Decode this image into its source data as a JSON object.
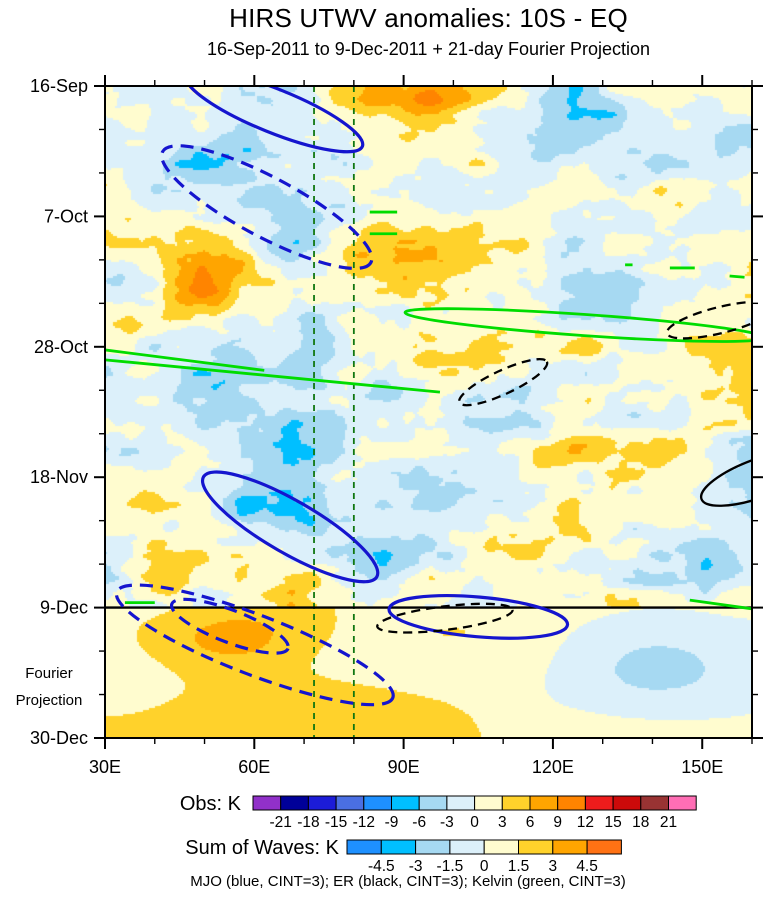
{
  "title": "HIRS UTWV anomalies: 10S - EQ",
  "subtitle": "16-Sep-2011 to 9-Dec-2011 + 21-day Fourier Projection",
  "footnote": "MJO (blue, CINT=3); ER (black, CINT=3); Kelvin (green, CINT=3)",
  "fourier_label": [
    "Fourier",
    "Projection"
  ],
  "chart_data": {
    "type": "heatmap",
    "description": "Hovmoller diagram (time vs longitude) of HIRS upper-tropospheric water vapor anomalies averaged 10S-EQ, observations through 9-Dec then 21-day Fourier projection, with MJO/ER/Kelvin wave contour envelopes overlaid",
    "x_axis": {
      "ticks": [
        "30E",
        "60E",
        "90E",
        "120E",
        "150E"
      ],
      "tick_lons": [
        30,
        60,
        90,
        120,
        150
      ],
      "minor_lons": [
        40,
        50,
        70,
        80,
        100,
        110,
        130,
        140,
        160
      ],
      "range": [
        30,
        160
      ]
    },
    "y_axis": {
      "ticks": [
        "16-Sep",
        "7-Oct",
        "28-Oct",
        "18-Nov",
        "9-Dec",
        "30-Dec"
      ],
      "tick_days": [
        0,
        21,
        42,
        63,
        84,
        105
      ],
      "minor_days": [
        7,
        14,
        28,
        35,
        49,
        56,
        70,
        77,
        91,
        98
      ],
      "range": [
        0,
        105
      ]
    },
    "projection_start_day": 84,
    "obs_colorbar": {
      "label": "Obs: K",
      "levels": [
        -21,
        -18,
        -15,
        -12,
        -9,
        -6,
        -3,
        0,
        3,
        6,
        9,
        12,
        15,
        18,
        21
      ],
      "colors": [
        "#9130C9",
        "#000099",
        "#1C1CD8",
        "#4A6FE3",
        "#1E90FF",
        "#00BFFF",
        "#A6D9F2",
        "#DCF0FA",
        "#FFFCCF",
        "#FFD22B",
        "#FFA500",
        "#FF8400",
        "#EE1C1C",
        "#CC0A0A",
        "#993333",
        "#FF6EB5"
      ]
    },
    "waves_colorbar": {
      "label": "Sum of Waves: K",
      "levels": [
        -4.5,
        -3,
        -1.5,
        0,
        1.5,
        3,
        4.5
      ],
      "colors": [
        "#1E90FF",
        "#00BFFF",
        "#A6D9F2",
        "#DCF0FA",
        "#FFFCCF",
        "#FFD22B",
        "#FFA500",
        "#FF7214"
      ]
    },
    "wave_legend": [
      {
        "name": "MJO",
        "color": "blue",
        "cint": 3
      },
      {
        "name": "ER",
        "color": "black",
        "cint": 3
      },
      {
        "name": "Kelvin",
        "color": "green",
        "cint": 3
      }
    ],
    "field": {
      "scale": 4.4,
      "octaves": [
        [
          95,
          52,
          1.0
        ],
        [
          47,
          26,
          0.6
        ],
        [
          23,
          13,
          0.35
        ],
        [
          12,
          7,
          0.2
        ]
      ],
      "bumps": [
        {
          "lon": 95,
          "day": 1.5,
          "sx": 20,
          "sy": 3,
          "a": 6
        },
        {
          "lon": 117,
          "day": 5,
          "sx": 10,
          "sy": 4,
          "a": -5
        },
        {
          "lon": 90,
          "day": 11,
          "sx": 12,
          "sy": 4,
          "a": 4.5
        },
        {
          "lon": 45,
          "day": 12,
          "sx": 9,
          "sy": 6,
          "a": -4
        },
        {
          "lon": 52,
          "day": 30,
          "sx": 8,
          "sy": 5,
          "a": 5.5
        },
        {
          "lon": 88,
          "day": 27,
          "sx": 11,
          "sy": 5,
          "a": 5.5
        },
        {
          "lon": 72,
          "day": 42,
          "sx": 5,
          "sy": 9,
          "a": -5
        },
        {
          "lon": 60,
          "day": 55,
          "sx": 11,
          "sy": 8,
          "a": -5.5
        },
        {
          "lon": 152,
          "day": 44,
          "sx": 9,
          "sy": 6,
          "a": 4.5
        },
        {
          "lon": 100,
          "day": 64,
          "sx": 10,
          "sy": 5,
          "a": -4.5
        },
        {
          "lon": 67,
          "day": 71,
          "sx": 13,
          "sy": 5,
          "a": -4.5
        },
        {
          "lon": 122,
          "day": 72,
          "sx": 10,
          "sy": 5,
          "a": 5
        },
        {
          "lon": 40,
          "day": 78,
          "sx": 8,
          "sy": 5,
          "a": 5
        }
      ],
      "projection": {
        "bias": 1.3,
        "octaves": [
          [
            230,
            95,
            2.6
          ],
          [
            110,
            48,
            0.9
          ]
        ],
        "bumps": [
          {
            "lon": 55,
            "day": 88.5,
            "sx": 13,
            "sy": 4.5,
            "a": 6.5
          },
          {
            "lon": 100,
            "day": 88,
            "sx": 10,
            "sy": 3,
            "a": 3
          },
          {
            "lon": 140,
            "day": 96,
            "sx": 13,
            "sy": 6,
            "a": -3.4
          },
          {
            "lon": 70,
            "day": 99,
            "sx": 18,
            "sy": 5,
            "a": 2
          }
        ]
      }
    },
    "overlays": {
      "reference_lines": {
        "color": "#117711",
        "vertical_lons": [
          72,
          80
        ]
      },
      "mjo": {
        "color": "#1515CE",
        "ellipses": [
          {
            "lon": 64,
            "day": 4,
            "rx_deg": 19.1,
            "ry_day": 3.5,
            "rot": 22,
            "dashed": false
          },
          {
            "lon": 62.5,
            "day": 19.5,
            "rx_deg": 23.7,
            "ry_day": 4.8,
            "rot": 28,
            "dashed": true
          },
          {
            "lon": 67.2,
            "day": 71,
            "rx_deg": 20.1,
            "ry_day": 4.2,
            "rot": 30,
            "dashed": false
          },
          {
            "lon": 60.1,
            "day": 90,
            "rx_deg": 29.7,
            "ry_day": 4.8,
            "rot": 21,
            "dashed": true
          },
          {
            "lon": 55.1,
            "day": 87,
            "rx_deg": 12.5,
            "ry_day": 2.6,
            "rot": 21,
            "dashed": true
          },
          {
            "lon": 105,
            "day": 85.5,
            "rx_deg": 18,
            "ry_day": 3.2,
            "rot": 5,
            "dashed": false
          }
        ]
      },
      "er": {
        "color": "#000000",
        "ellipses": [
          {
            "lon": 110,
            "day": 47.7,
            "rx_deg": 9.7,
            "ry_day": 1.9,
            "rot": -25,
            "dashed": true
          },
          {
            "lon": 153.6,
            "day": 37.7,
            "rx_deg": 11,
            "ry_day": 2.1,
            "rot": -14,
            "dashed": true
          },
          {
            "lon": 161.6,
            "day": 63.1,
            "rx_deg": 12.5,
            "ry_day": 3.1,
            "rot": -20,
            "dashed": false
          },
          {
            "lon": 98.3,
            "day": 85.7,
            "rx_deg": 13.7,
            "ry_day": 1.9,
            "rot": -7,
            "dashed": true
          }
        ]
      },
      "kelvin": {
        "color": "#00DC00",
        "ellipses": [
          {
            "lon": 126.4,
            "day": 38.5,
            "rx_deg": 36.2,
            "ry_day": 1.7,
            "rot": 4,
            "dashed": false
          }
        ],
        "lines": [
          [
            [
              30,
              42.5
            ],
            [
              62,
              45.8
            ]
          ],
          [
            [
              30,
              44.1
            ],
            [
              97.3,
              49.3
            ]
          ],
          [
            [
              83.2,
              20.3
            ],
            [
              88.7,
              20.3
            ]
          ],
          [
            [
              83.2,
              23.8
            ],
            [
              88.7,
              23.8
            ]
          ],
          [
            [
              134.5,
              28.8
            ],
            [
              136,
              28.8
            ]
          ],
          [
            [
              143.5,
              29.3
            ],
            [
              148.5,
              29.3
            ]
          ],
          [
            [
              155.5,
              30.6
            ],
            [
              158.5,
              30.8
            ]
          ],
          [
            [
              147.5,
              82.8
            ],
            [
              160,
              84.2
            ]
          ],
          [
            [
              34,
              83.2
            ],
            [
              40,
              83.2
            ]
          ]
        ]
      }
    }
  }
}
